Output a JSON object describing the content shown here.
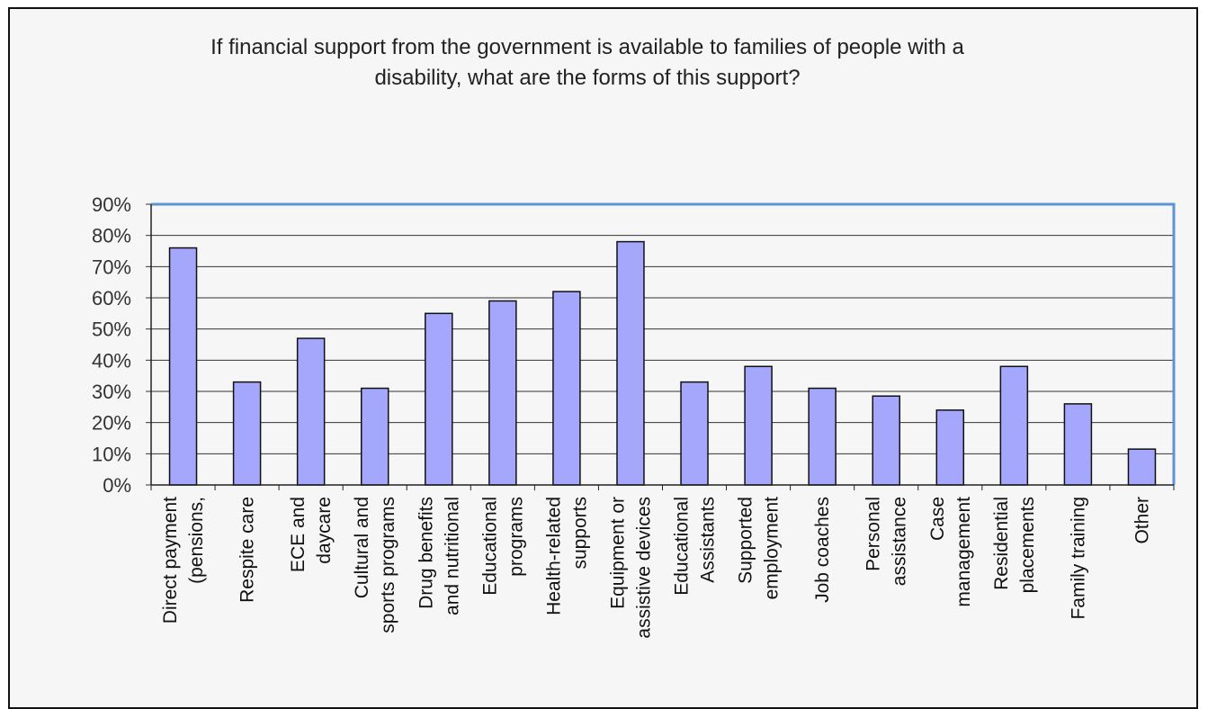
{
  "chart_data": {
    "type": "bar",
    "title_lines": [
      "If financial support from the government is available to families of people with a",
      "disability, what are the forms of this support?"
    ],
    "ylim": [
      0,
      90
    ],
    "yticks": [
      "0%",
      "10%",
      "20%",
      "30%",
      "40%",
      "50%",
      "60%",
      "70%",
      "80%",
      "90%"
    ],
    "grid": true,
    "categories": [
      [
        "Direct payment",
        "(pensions,"
      ],
      [
        "Respite care"
      ],
      [
        "ECE and",
        "daycare"
      ],
      [
        "Cultural and",
        "sports programs"
      ],
      [
        "Drug benefits",
        "and nutritional"
      ],
      [
        "Educational",
        "programs"
      ],
      [
        "Health-related",
        "supports"
      ],
      [
        "Equipment or",
        "assistive devices"
      ],
      [
        "Educational",
        "Assistants"
      ],
      [
        "Supported",
        "employment"
      ],
      [
        "Job coaches"
      ],
      [
        "Personal",
        "assistance"
      ],
      [
        "Case",
        "management"
      ],
      [
        "Residential",
        "placements"
      ],
      [
        "Family training"
      ],
      [
        "Other"
      ]
    ],
    "values": [
      76,
      33,
      47,
      31,
      55,
      59,
      62,
      78,
      33,
      38,
      31,
      28.5,
      24,
      38,
      26,
      11.5
    ],
    "bar_color": "#a4a7fc",
    "plot_border_color": "#5b95d3"
  }
}
